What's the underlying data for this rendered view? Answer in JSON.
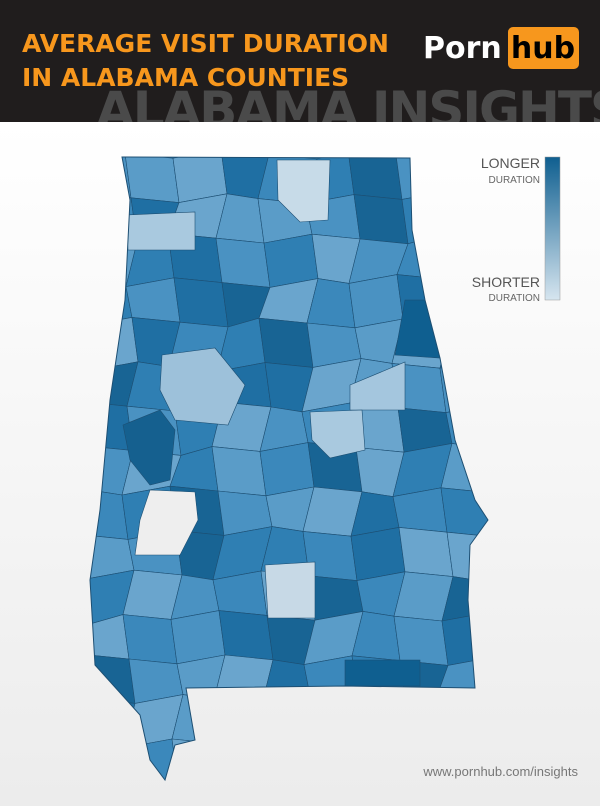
{
  "header": {
    "title_lines": [
      "AVERAGE VISIT DURATION",
      "IN ALABAMA COUNTIES"
    ],
    "logo": {
      "left": "Porn",
      "right": "hub"
    },
    "banner": "ALABAMA INSIGHTS"
  },
  "legend": {
    "high": {
      "label": "LONGER",
      "sublabel": "DURATION"
    },
    "low": {
      "label": "SHORTER",
      "sublabel": "DURATION"
    }
  },
  "footer": {
    "url": "www.pornhub.com/insights"
  }
}
